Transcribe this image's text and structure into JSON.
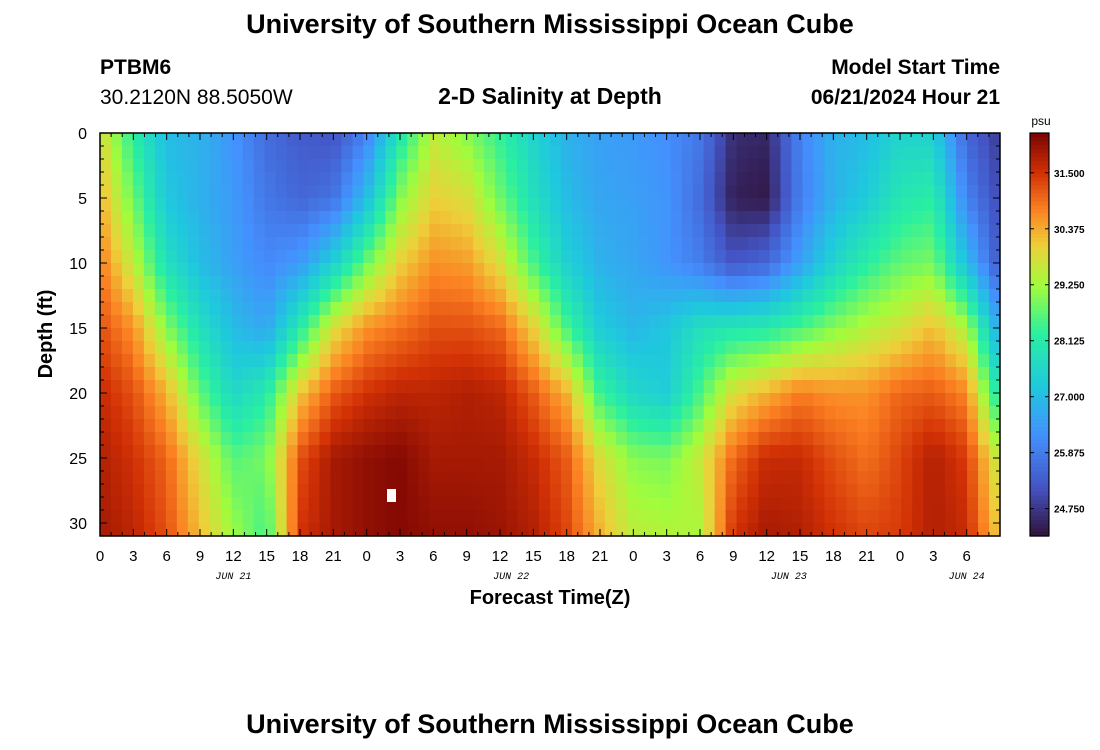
{
  "header": {
    "title": "University of Southern Mississippi Ocean Cube",
    "station": "PTBM6",
    "coords": "30.2120N  88.5050W",
    "plot_title": "2-D Salinity at Depth",
    "start_label": "Model Start Time",
    "start_value": "06/21/2024 Hour 21"
  },
  "footer": {
    "title": "University of Southern Mississippi Ocean Cube"
  },
  "colors": {
    "accent_dark": "#2d1650",
    "accent_hot": "#7a0403"
  },
  "chart_data": {
    "type": "heatmap",
    "title": "2-D Salinity at Depth",
    "xlabel": "Forecast Time(Z)",
    "ylabel": "Depth (ft)",
    "colorbar_unit": "psu",
    "x_range_hours": [
      0,
      81
    ],
    "x_tick_step_hours": 3,
    "x_tick_labels": [
      "0",
      "3",
      "6",
      "9",
      "12",
      "15",
      "18",
      "21",
      "0",
      "3",
      "6",
      "9",
      "12",
      "15",
      "18",
      "21",
      "0",
      "3",
      "6",
      "9",
      "12",
      "15",
      "18",
      "21",
      "0",
      "3",
      "6"
    ],
    "date_labels": [
      {
        "label": "JUN 21",
        "hour": 12
      },
      {
        "label": "JUN 22",
        "hour": 37
      },
      {
        "label": "JUN 23",
        "hour": 62
      },
      {
        "label": "JUN 24",
        "hour": 78
      }
    ],
    "y_range_ft": [
      0,
      31
    ],
    "y_tick_values": [
      0,
      5,
      10,
      15,
      20,
      25,
      30
    ],
    "y_tick_labels": [
      "0",
      "5",
      "10",
      "15",
      "20",
      "25",
      "30"
    ],
    "colorbar_ticks": [
      31.5,
      30.375,
      29.25,
      28.125,
      27.0,
      25.875,
      24.75
    ],
    "colorbar_tick_labels": [
      "31.500",
      "30.375",
      "29.250",
      "28.125",
      "27.000",
      "25.875",
      "24.750"
    ],
    "color_range": [
      24.2,
      32.3
    ],
    "grid_hours": [
      0,
      3,
      6,
      9,
      12,
      15,
      18,
      21,
      24,
      27,
      30,
      33,
      36,
      39,
      42,
      45,
      48,
      51,
      54,
      57,
      60,
      63,
      66,
      69,
      72,
      75,
      78,
      81
    ],
    "grid_depths_ft": [
      0,
      5,
      10,
      15,
      20,
      25,
      31
    ],
    "salinity_psu": [
      [
        29.8,
        28.2,
        27.0,
        26.8,
        26.3,
        25.6,
        25.3,
        25.2,
        26.0,
        28.0,
        29.5,
        29.0,
        28.3,
        27.5,
        26.8,
        26.5,
        26.4,
        26.2,
        25.8,
        24.6,
        24.5,
        26.0,
        26.8,
        27.0,
        27.5,
        27.4,
        25.5,
        24.8
      ],
      [
        30.3,
        28.8,
        27.2,
        26.8,
        26.4,
        25.8,
        25.5,
        25.7,
        27.0,
        29.0,
        30.0,
        29.8,
        28.8,
        27.8,
        27.0,
        26.6,
        26.5,
        26.3,
        25.6,
        24.4,
        24.3,
        25.9,
        26.8,
        27.3,
        28.0,
        28.2,
        26.0,
        25.0
      ],
      [
        30.8,
        29.5,
        27.8,
        27.0,
        26.5,
        26.1,
        26.4,
        27.4,
        28.8,
        30.0,
        30.6,
        30.5,
        29.8,
        28.5,
        27.4,
        26.8,
        26.6,
        26.3,
        25.9,
        25.2,
        25.5,
        26.5,
        27.5,
        28.2,
        28.7,
        28.9,
        27.0,
        25.2
      ],
      [
        31.2,
        30.6,
        29.0,
        27.8,
        27.0,
        26.6,
        28.1,
        29.8,
        30.6,
        30.9,
        31.2,
        31.2,
        31.0,
        30.0,
        28.5,
        27.3,
        26.9,
        27.2,
        27.8,
        28.0,
        28.1,
        28.5,
        29.0,
        29.4,
        29.7,
        30.2,
        29.3,
        26.5
      ],
      [
        31.6,
        31.2,
        30.3,
        28.7,
        27.6,
        28.1,
        30.1,
        31.1,
        31.5,
        31.7,
        31.7,
        31.8,
        31.7,
        31.1,
        30.3,
        28.4,
        27.6,
        27.3,
        28.5,
        29.8,
        30.3,
        30.8,
        30.6,
        30.6,
        31.0,
        31.1,
        30.7,
        27.8
      ],
      [
        31.8,
        31.5,
        31.0,
        29.8,
        28.6,
        28.9,
        31.2,
        31.9,
        32.1,
        32.2,
        31.9,
        31.9,
        31.9,
        31.6,
        31.1,
        29.8,
        29.0,
        28.9,
        29.6,
        31.0,
        31.6,
        31.6,
        31.2,
        30.9,
        31.3,
        31.8,
        31.4,
        29.4
      ],
      [
        31.9,
        31.7,
        31.2,
        30.2,
        29.2,
        28.4,
        31.5,
        31.9,
        32.1,
        32.2,
        32.1,
        32.1,
        32.0,
        31.8,
        31.3,
        30.3,
        29.5,
        29.4,
        29.3,
        31.5,
        31.9,
        31.8,
        31.5,
        31.3,
        31.4,
        31.8,
        31.6,
        30.0
      ]
    ]
  }
}
